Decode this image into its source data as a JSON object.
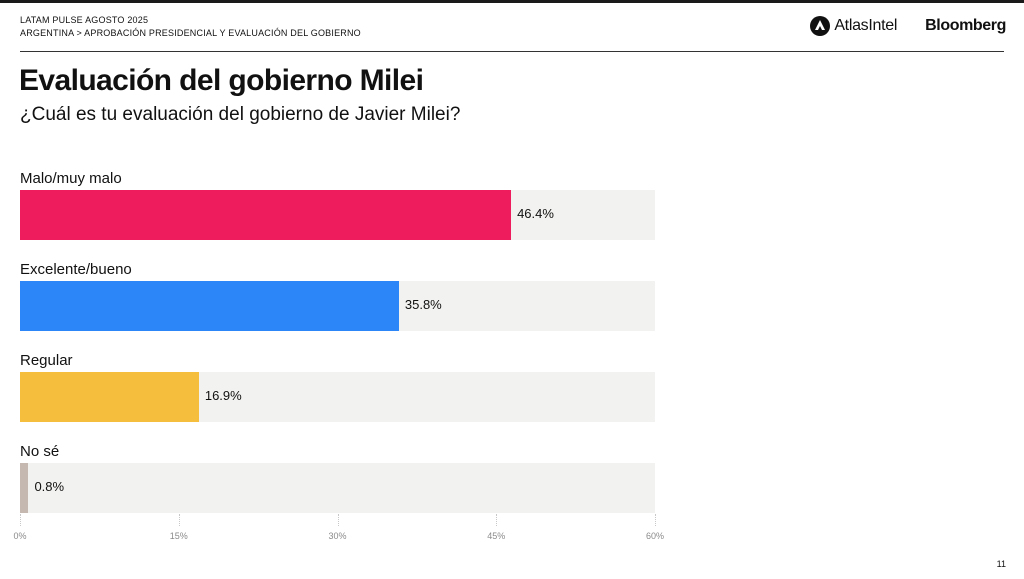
{
  "header": {
    "line1": "LATAM PULSE AGOSTO 2025",
    "line2": "ARGENTINA > APROBACIÓN PRESIDENCIAL Y EVALUACIÓN DEL GOBIERNO"
  },
  "brands": {
    "atlas": "AtlasIntel",
    "bloomberg": "Bloomberg"
  },
  "page_number": "11",
  "chart_data": {
    "type": "bar",
    "orientation": "horizontal",
    "title": "Evaluación del gobierno Milei",
    "subtitle": "¿Cuál es tu evaluación del gobierno de Javier Milei?",
    "categories": [
      "Malo/muy malo",
      "Excelente/bueno",
      "Regular",
      "No sé"
    ],
    "values": [
      46.4,
      35.8,
      16.9,
      0.8
    ],
    "value_labels": [
      "46.4%",
      "35.8%",
      "16.9%",
      "0.8%"
    ],
    "colors": [
      "#ee1c5c",
      "#2d86f7",
      "#f6be3d",
      "#c4b8b0"
    ],
    "xlim": [
      0,
      60
    ],
    "ticks": [
      "0%",
      "15%",
      "30%",
      "45%",
      "60%"
    ],
    "tick_values": [
      0,
      15,
      30,
      45,
      60
    ],
    "grid": false,
    "legend": "none"
  }
}
